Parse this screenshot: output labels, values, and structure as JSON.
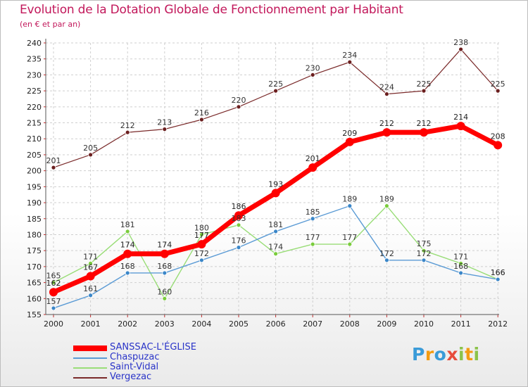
{
  "title": "Evolution de la Dotation Globale de Fonctionnement par Habitant",
  "subtitle": "(en € et par an)",
  "logo": {
    "text": "Proxiti",
    "letters": [
      "P",
      "r",
      "o",
      "x",
      "i",
      "t",
      "i"
    ],
    "colors": [
      "#3a9bd8",
      "#f39c12",
      "#3a9bd8",
      "#e74c3c",
      "#8bc34a",
      "#f39c12",
      "#8bc34a"
    ]
  },
  "chart_data": {
    "type": "line",
    "title": "Evolution de la Dotation Globale de Fonctionnement par Habitant",
    "subtitle": "(en € et par an)",
    "xlabel": "",
    "ylabel": "",
    "x": [
      "2000",
      "2001",
      "2002",
      "2003",
      "2004",
      "2005",
      "2006",
      "2007",
      "2008",
      "2009",
      "2010",
      "2011",
      "2012"
    ],
    "ylim": [
      155,
      240
    ],
    "yticks": [
      155,
      160,
      165,
      170,
      175,
      180,
      185,
      190,
      195,
      200,
      205,
      210,
      215,
      220,
      225,
      230,
      235,
      240
    ],
    "grid": true,
    "legend_position": "bottom-left",
    "series": [
      {
        "name": "SANSSAC-L'ÉGLISE",
        "color": "#ff0000",
        "dot": "#ff0000",
        "labelColor": "#222222",
        "width": 7,
        "r": 6,
        "values": [
          162,
          167,
          174,
          174,
          177,
          186,
          193,
          201,
          209,
          212,
          212,
          214,
          208
        ]
      },
      {
        "name": "Chaspuzac",
        "color": "#5b9bd5",
        "dot": "#3a86c8",
        "labelColor": "#333333",
        "width": 1.4,
        "r": 3,
        "values": [
          157,
          161,
          168,
          168,
          172,
          176,
          181,
          185,
          189,
          172,
          172,
          168,
          166
        ]
      },
      {
        "name": "Saint-Vidal",
        "color": "#99dd77",
        "dot": "#7acc3c",
        "labelColor": "#333333",
        "width": 1.4,
        "r": 3,
        "values": [
          165,
          171,
          181,
          160,
          180,
          183,
          174,
          177,
          177,
          189,
          175,
          171,
          166
        ]
      },
      {
        "name": "Vergezac",
        "color": "#7a2a2a",
        "dot": "#6b1f1f",
        "labelColor": "#333333",
        "width": 1.2,
        "r": 3,
        "values": [
          201,
          205,
          212,
          213,
          216,
          220,
          225,
          230,
          234,
          224,
          225,
          238,
          225
        ]
      }
    ]
  }
}
